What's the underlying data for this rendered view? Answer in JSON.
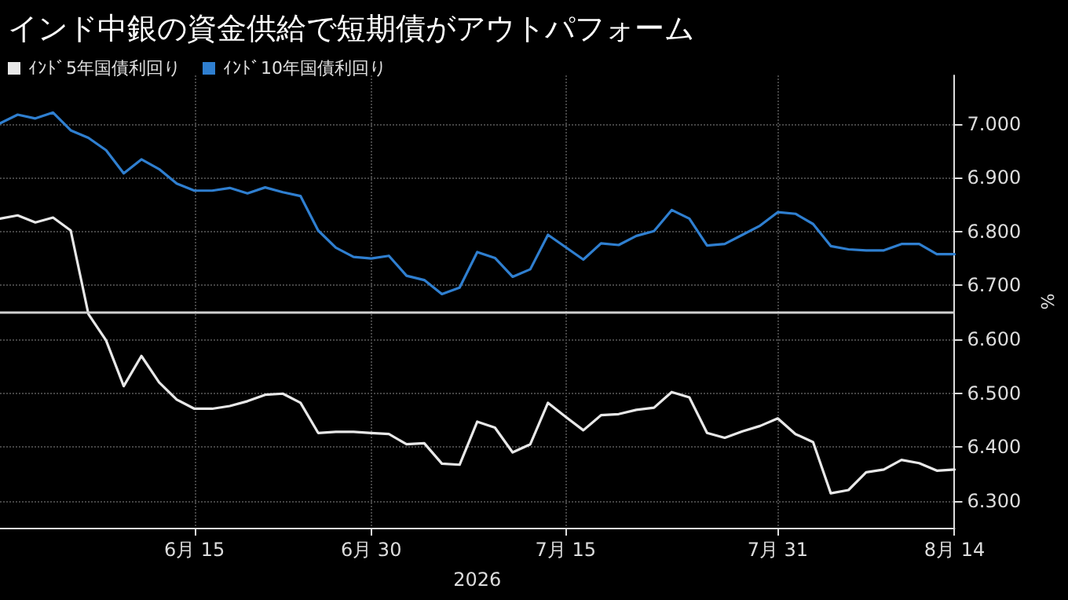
{
  "chart_data": {
    "type": "line",
    "title": "インド中銀の資金供給で短期債がアウトパフォーム",
    "xlabel": "2026",
    "ylabel": "%",
    "categories": [
      null,
      null,
      null,
      null,
      null,
      null,
      null,
      null,
      null,
      null,
      null,
      "6月 15",
      null,
      null,
      null,
      null,
      null,
      null,
      null,
      null,
      null,
      "6月 30",
      null,
      null,
      null,
      null,
      null,
      null,
      null,
      null,
      null,
      null,
      "7月 15",
      null,
      null,
      null,
      null,
      null,
      null,
      null,
      null,
      null,
      null,
      null,
      "7月 31",
      null,
      null,
      null,
      null,
      null,
      null,
      null,
      null,
      null,
      "8月 14"
    ],
    "series": [
      {
        "name": "ｲﾝﾄﾞ5年国債利回り",
        "color": "#e8e8e8",
        "values": [
          6.824,
          6.83,
          6.817,
          6.826,
          6.802,
          6.647,
          6.598,
          6.513,
          6.569,
          6.52,
          6.488,
          6.471,
          6.471,
          6.476,
          6.485,
          6.497,
          6.499,
          6.482,
          6.426,
          6.428,
          6.428,
          6.426,
          6.424,
          6.405,
          6.407,
          6.369,
          6.367,
          6.447,
          6.436,
          6.39,
          6.405,
          6.482,
          6.456,
          6.431,
          6.459,
          6.461,
          6.469,
          6.473,
          6.502,
          6.492,
          6.426,
          6.417,
          6.429,
          6.439,
          6.453,
          6.424,
          6.409,
          6.314,
          6.32,
          6.353,
          6.358,
          6.376,
          6.37,
          6.356,
          6.358
        ]
      },
      {
        "name": "ｲﾝﾄﾞ10年国債利回り",
        "color": "#2f7fd0",
        "values": [
          7.001,
          7.017,
          7.01,
          7.021,
          6.988,
          6.974,
          6.951,
          6.908,
          6.934,
          6.916,
          6.889,
          6.876,
          6.876,
          6.881,
          6.871,
          6.882,
          6.873,
          6.866,
          6.802,
          6.77,
          6.753,
          6.75,
          6.755,
          6.718,
          6.71,
          6.684,
          6.696,
          6.762,
          6.751,
          6.716,
          6.73,
          6.794,
          6.771,
          6.748,
          6.778,
          6.775,
          6.792,
          6.801,
          6.84,
          6.824,
          6.774,
          6.777,
          6.794,
          6.811,
          6.836,
          6.833,
          6.814,
          6.773,
          6.767,
          6.765,
          6.765,
          6.777,
          6.777,
          6.758,
          6.758
        ]
      }
    ],
    "ylim": [
      6.25,
      7.09
    ],
    "yticks": [
      {
        "value": 6.3,
        "label": "6.300"
      },
      {
        "value": 6.4,
        "label": "6.400"
      },
      {
        "value": 6.5,
        "label": "6.500"
      },
      {
        "value": 6.6,
        "label": "6.600"
      },
      {
        "value": 6.7,
        "label": "6.700"
      },
      {
        "value": 6.8,
        "label": "6.800"
      },
      {
        "value": 6.9,
        "label": "6.900"
      },
      {
        "value": 7.0,
        "label": "7.000"
      }
    ],
    "ref_lines": [
      {
        "axis": "y",
        "value": 6.65,
        "label": null,
        "color": "#d0d0d0",
        "line_style": "solid"
      }
    ],
    "grid": true,
    "legend": "top left",
    "marker": "none",
    "line_style": "solid"
  }
}
